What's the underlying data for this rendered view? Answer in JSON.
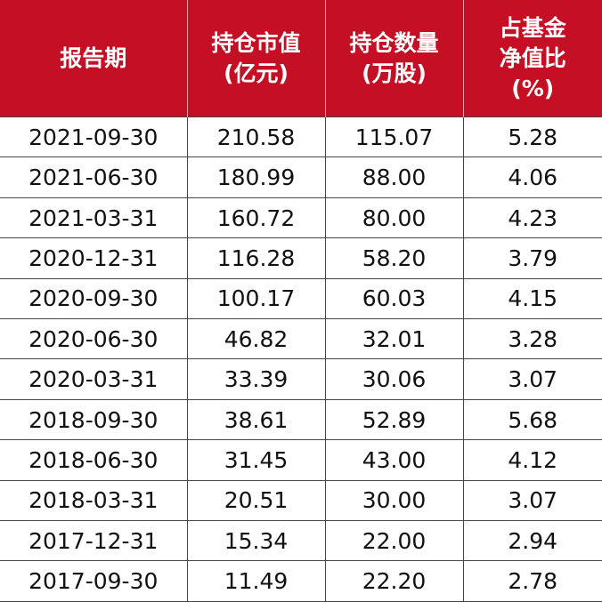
{
  "table": {
    "header": [
      [
        "报告期"
      ],
      [
        "持仓市值",
        "(亿元)"
      ],
      [
        "持仓数量",
        "(万股)"
      ],
      [
        "占基金",
        "净值比",
        "(%)"
      ]
    ],
    "rows": [
      [
        "2021-09-30",
        "210.58",
        "115.07",
        "5.28"
      ],
      [
        "2021-06-30",
        "180.99",
        "88.00",
        "4.06"
      ],
      [
        "2021-03-31",
        "160.72",
        "80.00",
        "4.23"
      ],
      [
        "2020-12-31",
        "116.28",
        "58.20",
        "3.79"
      ],
      [
        "2020-09-30",
        "100.17",
        "60.03",
        "4.15"
      ],
      [
        "2020-06-30",
        "46.82",
        "32.01",
        "3.28"
      ],
      [
        "2020-03-31",
        "33.39",
        "30.06",
        "3.07"
      ],
      [
        "2018-09-30",
        "38.61",
        "52.89",
        "5.68"
      ],
      [
        "2018-06-30",
        "31.45",
        "43.00",
        "4.12"
      ],
      [
        "2018-03-31",
        "20.51",
        "30.00",
        "3.07"
      ],
      [
        "2017-12-31",
        "15.34",
        "22.00",
        "2.94"
      ],
      [
        "2017-09-30",
        "11.49",
        "22.20",
        "2.78"
      ]
    ]
  }
}
